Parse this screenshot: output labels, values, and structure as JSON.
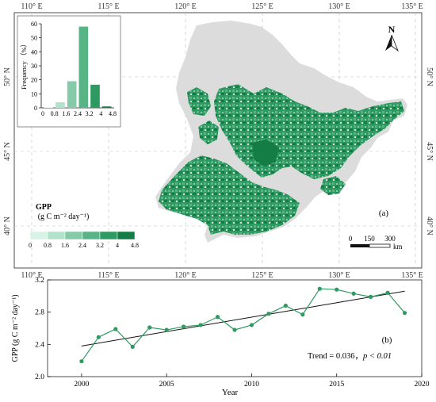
{
  "map": {
    "top_lon_labels": [
      "110° E",
      "115° E",
      "120° E",
      "125° E",
      "130° E",
      "135° E"
    ],
    "bottom_lon_labels": [
      "110° E",
      "115° E",
      "120° E",
      "125° E",
      "130° E",
      "135° E"
    ],
    "lat_labels": [
      "50° N",
      "45° N",
      "40° N"
    ],
    "panel_label": "(a)",
    "north_label": "N",
    "scale_ticks": [
      "0",
      "150",
      "300"
    ],
    "scale_unit": "km",
    "legend": {
      "title": "GPP",
      "unit": "(g C m⁻² day⁻¹)",
      "ticks": [
        "0",
        "0.8",
        "1.6",
        "2.4",
        "3.2",
        "4",
        "4.8"
      ],
      "colors": [
        "#d9f2e7",
        "#b3e2cb",
        "#86cba9",
        "#59b485",
        "#2e9a62",
        "#137d45"
      ]
    },
    "colors": {
      "land": "#dcdcdc",
      "gpp_dark": "#137d45",
      "gpp_mid": "#2e9a62",
      "gpp_light": "#59b485"
    }
  },
  "inset": {
    "ylabel": "Frequency （%）",
    "yticks": [
      "0",
      "10",
      "20",
      "30",
      "40",
      "50",
      "60"
    ],
    "xticks": [
      "0",
      "0.8",
      "1.6",
      "2.4",
      "3.2",
      "4",
      "4.8"
    ]
  },
  "ts": {
    "panel_label": "(b)",
    "ylabel": "GPP (g C m⁻² day⁻¹)",
    "xlabel": "Year",
    "xticks": [
      "2000",
      "2005",
      "2010",
      "2015",
      "2020"
    ],
    "yticks": [
      "2.0",
      "2.4",
      "2.8",
      "3.2"
    ],
    "trend_text": "Trend = 0.036，",
    "p_text": "p < 0.01",
    "colors": {
      "line": "#2e9a62",
      "trend": "#111111"
    }
  },
  "chart_data": [
    {
      "type": "bar",
      "categories": [
        "0–0.8",
        "0.8–1.6",
        "1.6–2.4",
        "2.4–3.2",
        "3.2–4",
        "4–4.8"
      ],
      "values": [
        0.3,
        4,
        19,
        58,
        16.5,
        1
      ],
      "colors": [
        "#d9f2e7",
        "#b3e2cb",
        "#86cba9",
        "#59b485",
        "#2e9a62",
        "#137d45"
      ],
      "xlabel": "",
      "ylabel": "Frequency （%）",
      "ylim": [
        0,
        60
      ]
    },
    {
      "type": "line",
      "x": [
        2000,
        2001,
        2002,
        2003,
        2004,
        2005,
        2006,
        2007,
        2008,
        2009,
        2010,
        2011,
        2012,
        2013,
        2014,
        2015,
        2016,
        2017,
        2018,
        2019
      ],
      "series": [
        {
          "values": [
            2.19,
            2.49,
            2.59,
            2.37,
            2.61,
            2.58,
            2.62,
            2.64,
            2.74,
            2.58,
            2.64,
            2.78,
            2.88,
            2.77,
            3.09,
            3.08,
            3.03,
            2.99,
            3.04,
            2.79
          ]
        }
      ],
      "trend": {
        "x": [
          2000,
          2019
        ],
        "y": [
          2.38,
          3.06
        ]
      },
      "xlabel": "Year",
      "ylabel": "GPP (g C m⁻² day⁻¹)",
      "xlim": [
        1998,
        2020
      ],
      "ylim": [
        2.0,
        3.2
      ]
    }
  ]
}
